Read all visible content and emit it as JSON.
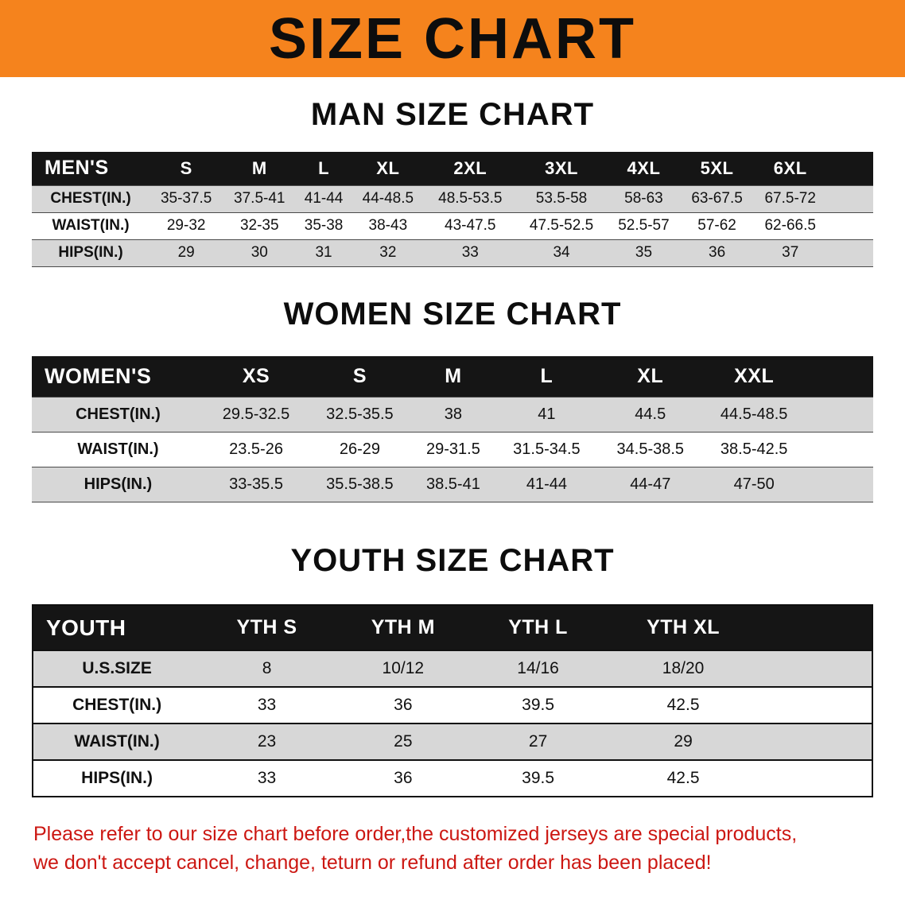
{
  "banner": {
    "title": "SIZE CHART",
    "bg_color": "#f5831d"
  },
  "sections": [
    {
      "heading": "MAN SIZE CHART",
      "table": {
        "header": [
          "MEN'S",
          "S",
          "M",
          "L",
          "XL",
          "2XL",
          "3XL",
          "4XL",
          "5XL",
          "6XL"
        ],
        "rows": [
          [
            "CHEST(IN.)",
            "35-37.5",
            "37.5-41",
            "41-44",
            "44-48.5",
            "48.5-53.5",
            "53.5-58",
            "58-63",
            "63-67.5",
            "67.5-72"
          ],
          [
            "WAIST(IN.)",
            "29-32",
            "32-35",
            "35-38",
            "38-43",
            "43-47.5",
            "47.5-52.5",
            "52.5-57",
            "57-62",
            "62-66.5"
          ],
          [
            "HIPS(IN.)",
            "29",
            "30",
            "31",
            "32",
            "33",
            "34",
            "35",
            "36",
            "37"
          ]
        ]
      }
    },
    {
      "heading": "WOMEN SIZE CHART",
      "table": {
        "header": [
          "WOMEN'S",
          "XS",
          "S",
          "M",
          "L",
          "XL",
          "XXL"
        ],
        "rows": [
          [
            "CHEST(IN.)",
            "29.5-32.5",
            "32.5-35.5",
            "38",
            "41",
            "44.5",
            "44.5-48.5"
          ],
          [
            "WAIST(IN.)",
            "23.5-26",
            "26-29",
            "29-31.5",
            "31.5-34.5",
            "34.5-38.5",
            "38.5-42.5"
          ],
          [
            "HIPS(IN.)",
            "33-35.5",
            "35.5-38.5",
            "38.5-41",
            "41-44",
            "44-47",
            "47-50"
          ]
        ]
      }
    },
    {
      "heading": "YOUTH SIZE CHART",
      "table": {
        "header": [
          "YOUTH",
          "YTH S",
          "YTH M",
          "YTH L",
          "YTH XL"
        ],
        "rows": [
          [
            "U.S.SIZE",
            "8",
            "10/12",
            "14/16",
            "18/20"
          ],
          [
            "CHEST(IN.)",
            "33",
            "36",
            "39.5",
            "42.5"
          ],
          [
            "WAIST(IN.)",
            "23",
            "25",
            "27",
            "29"
          ],
          [
            "HIPS(IN.)",
            "33",
            "36",
            "39.5",
            "42.5"
          ]
        ]
      }
    }
  ],
  "disclaimer": {
    "line1": "Please refer to our size chart before order,the customized jerseys are special products,",
    "line2": "we don't accept cancel, change, teturn or refund after order has been placed!",
    "color": "#cc1712"
  }
}
